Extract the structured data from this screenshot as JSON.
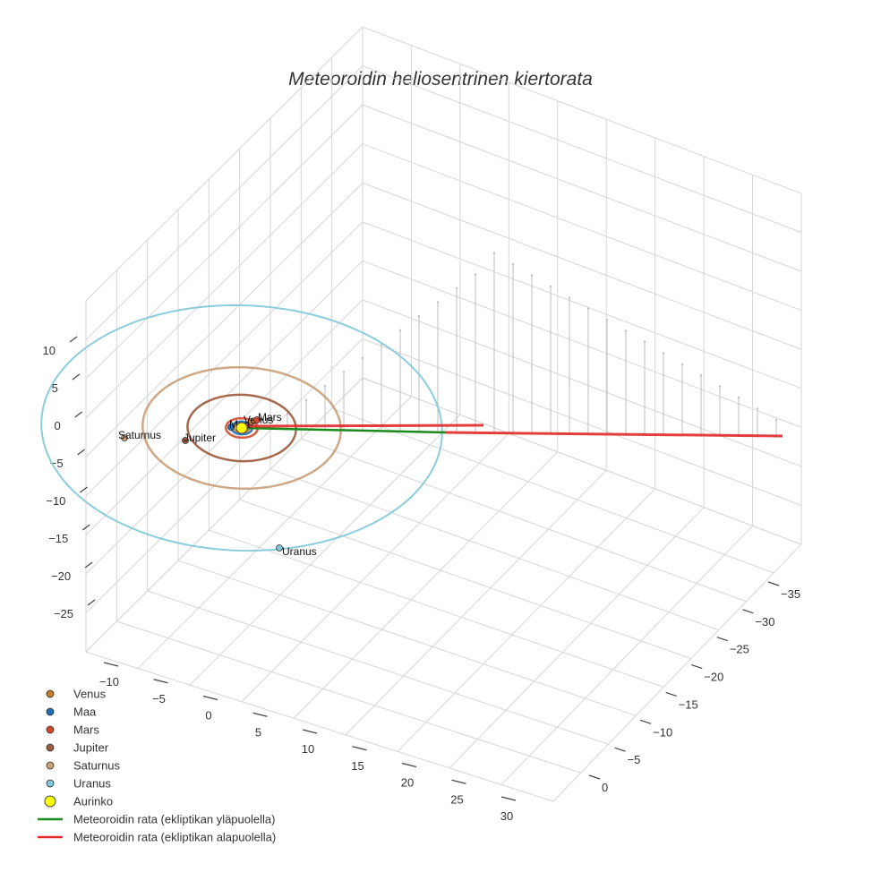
{
  "chart_data": {
    "type": "scatter3d",
    "title": "Meteoroidin heliosentrinen kiertorata",
    "axes": {
      "x": {
        "ticks": [
          -10,
          -5,
          0,
          5,
          10,
          15,
          20,
          25,
          30
        ]
      },
      "y": {
        "ticks": [
          -35,
          -30,
          -25,
          -20,
          -15,
          -10,
          -5,
          0
        ]
      },
      "z": {
        "ticks": [
          10,
          5,
          0,
          -5,
          -10,
          -15,
          -20,
          -25
        ]
      }
    },
    "grid": true,
    "legend_position": "bottom-left",
    "planets": [
      {
        "name": "Venus",
        "label": "Venus",
        "color": "#c97a2c",
        "orbit_radius_au": 0.72
      },
      {
        "name": "Maa",
        "label": "Maa",
        "color": "#1f6fb4",
        "orbit_radius_au": 1.0
      },
      {
        "name": "Mars",
        "label": "Mars",
        "color": "#d24a2a",
        "orbit_radius_au": 1.52
      },
      {
        "name": "Jupiter",
        "label": "Jupiter",
        "color": "#9b5a3c",
        "orbit_radius_au": 5.2
      },
      {
        "name": "Saturnus",
        "label": "Saturnus",
        "color": "#c9a07a",
        "orbit_radius_au": 9.5
      },
      {
        "name": "Uranus",
        "label": "Uranus",
        "color": "#7ec8d8",
        "orbit_radius_au": 19.2
      }
    ],
    "sun": {
      "name": "Aurinko",
      "color": "#ffff00"
    },
    "series": [
      {
        "name": "Meteoroidin rata (ekliptikan yläpuolella)",
        "color": "#1a8a1a"
      },
      {
        "name": "Meteoroidin rata (ekliptikan alapuolella)",
        "color": "#e02828"
      }
    ]
  },
  "legend": {
    "items": [
      {
        "label": "Venus",
        "kind": "marker",
        "color": "#c97a2c"
      },
      {
        "label": "Maa",
        "kind": "marker",
        "color": "#1f6fb4"
      },
      {
        "label": "Mars",
        "kind": "marker",
        "color": "#d24a2a"
      },
      {
        "label": "Jupiter",
        "kind": "marker",
        "color": "#9b5a3c"
      },
      {
        "label": "Saturnus",
        "kind": "marker",
        "color": "#c9a07a"
      },
      {
        "label": "Uranus",
        "kind": "marker",
        "color": "#7ec8d8"
      },
      {
        "label": "Aurinko",
        "kind": "sun",
        "color": "#ffff00"
      },
      {
        "label": "Meteoroidin rata (ekliptikan yläpuolella)",
        "kind": "line",
        "color": "#1a8a1a"
      },
      {
        "label": "Meteoroidin rata (ekliptikan alapuolella)",
        "kind": "line",
        "color": "#e02828"
      }
    ]
  }
}
